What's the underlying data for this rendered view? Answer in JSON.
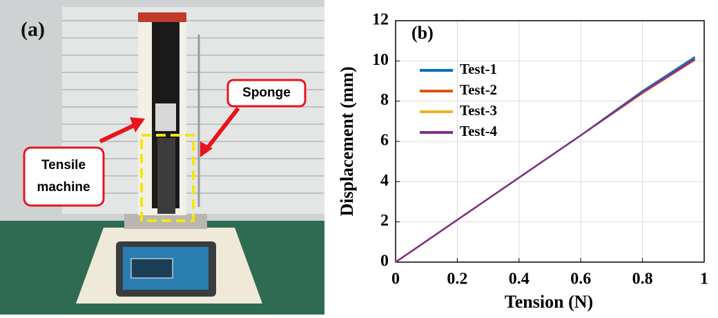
{
  "panel_a": {
    "label": "(a)",
    "callouts": {
      "sponge": "Sponge",
      "tensile_machine": [
        "Tensile",
        "machine"
      ]
    }
  },
  "chart_data": {
    "type": "line",
    "panel_label": "(b)",
    "x_label": "Tension (N)",
    "y_label": "Displacement (mm)",
    "x": [
      0,
      0.2,
      0.4,
      0.6,
      0.8,
      0.97
    ],
    "series": [
      {
        "name": "Test-1",
        "color": "#0072bd",
        "values": [
          0,
          2.1,
          4.2,
          6.3,
          8.5,
          10.2
        ]
      },
      {
        "name": "Test-2",
        "color": "#d95319",
        "values": [
          0,
          2.1,
          4.2,
          6.3,
          8.4,
          10.05
        ]
      },
      {
        "name": "Test-3",
        "color": "#edb120",
        "values": [
          0,
          2.1,
          4.2,
          6.3,
          8.45,
          10.1
        ]
      },
      {
        "name": "Test-4",
        "color": "#7e2f8e",
        "values": [
          0,
          2.1,
          4.2,
          6.3,
          8.45,
          10.1
        ]
      }
    ],
    "xlim": [
      0,
      1
    ],
    "xticks": [
      0,
      0.2,
      0.4,
      0.6,
      0.8,
      1
    ],
    "ylim": [
      0,
      12
    ],
    "yticks": [
      0,
      2,
      4,
      6,
      8,
      10,
      12
    ],
    "grid": true,
    "legend": "upper-left"
  }
}
